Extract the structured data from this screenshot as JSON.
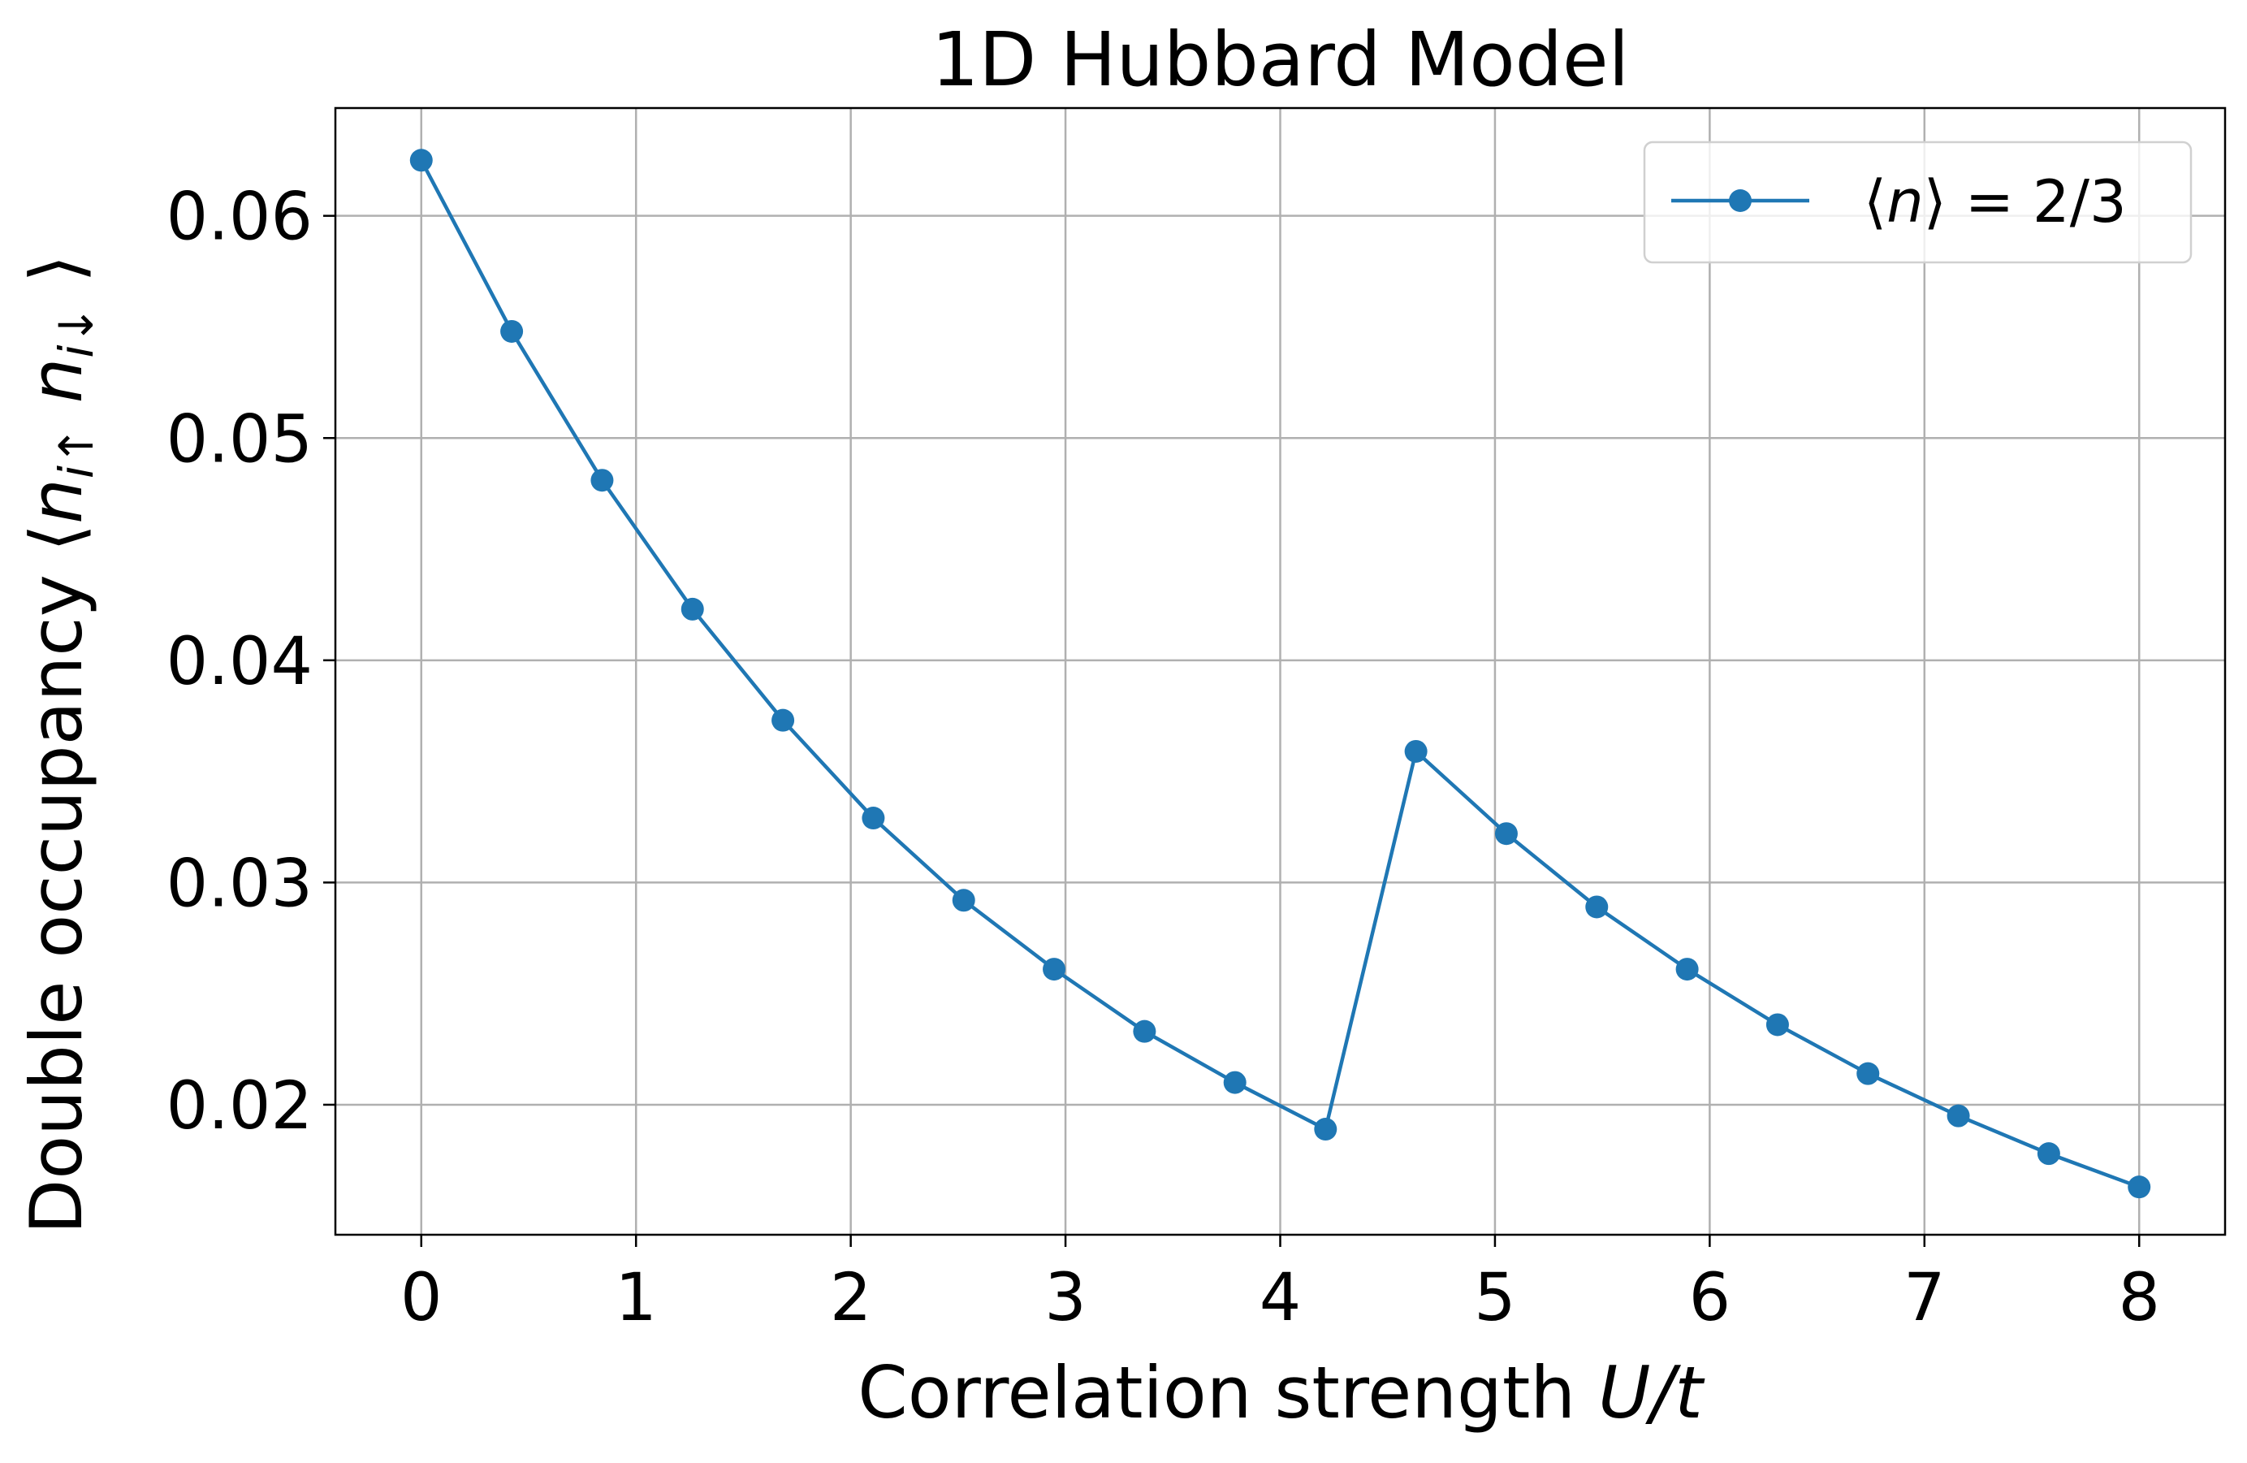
{
  "chart_data": {
    "type": "line",
    "title": "1D Hubbard Model",
    "xlabel_prefix": "Correlation strength ",
    "xlabel_italic": "U/t",
    "ylabel_prefix": "Double occupancy ",
    "ylabel_math": "⟨n_{i↑} n_{i↓}⟩",
    "xlim": [
      -0.4,
      8.4
    ],
    "ylim": [
      0.01415,
      0.06485
    ],
    "x_ticks": [
      0,
      1,
      2,
      3,
      4,
      5,
      6,
      7,
      8
    ],
    "x_tick_labels": [
      "0",
      "1",
      "2",
      "3",
      "4",
      "5",
      "6",
      "7",
      "8"
    ],
    "y_ticks": [
      0.02,
      0.03,
      0.04,
      0.05,
      0.06
    ],
    "y_tick_labels": [
      "0.02",
      "0.03",
      "0.04",
      "0.05",
      "0.06"
    ],
    "grid": true,
    "legend_position": "top-right",
    "series": [
      {
        "name": "⟨n⟩ = 2/3",
        "name_math": "⟨n⟩",
        "name_rest": " = 2/3",
        "color": "#1f77b4",
        "marker": "circle",
        "x": [
          0,
          0.421,
          0.842,
          1.263,
          1.684,
          2.105,
          2.526,
          2.947,
          3.368,
          3.789,
          4.211,
          4.632,
          5.053,
          5.474,
          5.895,
          6.316,
          6.737,
          7.158,
          7.579,
          8.0
        ],
        "y": [
          0.0625,
          0.0548,
          0.0481,
          0.0423,
          0.0373,
          0.0329,
          0.0292,
          0.0261,
          0.0233,
          0.021,
          0.0189,
          0.0359,
          0.0322,
          0.0289,
          0.0261,
          0.0236,
          0.0214,
          0.0195,
          0.0178,
          0.0163
        ]
      }
    ]
  }
}
